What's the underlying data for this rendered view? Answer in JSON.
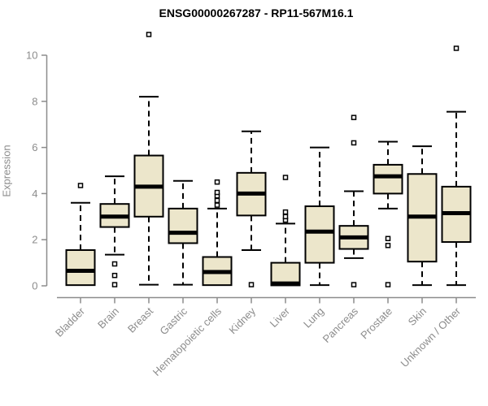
{
  "page": {
    "background": "#ffffff"
  },
  "chart_data": {
    "type": "boxplot",
    "title": "ENSG00000267287 - RP11-567M16.1",
    "ylabel": "Expression",
    "xlabel": "",
    "ylim": [
      0,
      10
    ],
    "yticks": [
      0,
      2,
      4,
      6,
      8,
      10
    ],
    "grid": false,
    "legend": "none",
    "categories": [
      "Bladder",
      "Brain",
      "Breast",
      "Gastric",
      "Hematopoietic cells",
      "Kidney",
      "Liver",
      "Lung",
      "Pancreas",
      "Prostate",
      "Skin",
      "Unknown / Other"
    ],
    "series": [
      {
        "name": "Bladder",
        "whislo": 0.03,
        "q1": 0.03,
        "med": 0.65,
        "q3": 1.55,
        "whishi": 3.6,
        "outliers": [
          4.35
        ]
      },
      {
        "name": "Brain",
        "whislo": 1.35,
        "q1": 2.55,
        "med": 3.0,
        "q3": 3.55,
        "whishi": 4.75,
        "outliers": [
          0.95,
          0.45,
          0.05
        ]
      },
      {
        "name": "Breast",
        "whislo": 0.05,
        "q1": 3.0,
        "med": 4.3,
        "q3": 5.65,
        "whishi": 8.2,
        "outliers": [
          10.9
        ]
      },
      {
        "name": "Gastric",
        "whislo": 0.05,
        "q1": 1.85,
        "med": 2.3,
        "q3": 3.35,
        "whishi": 4.55,
        "outliers": []
      },
      {
        "name": "Hematopoietic cells",
        "whislo": 0.03,
        "q1": 0.03,
        "med": 0.6,
        "q3": 1.25,
        "whishi": 3.35,
        "outliers": [
          3.5,
          3.7,
          3.9,
          4.05,
          4.5
        ]
      },
      {
        "name": "Kidney",
        "whislo": 1.55,
        "q1": 3.05,
        "med": 4.0,
        "q3": 4.9,
        "whishi": 6.7,
        "outliers": [
          0.05
        ]
      },
      {
        "name": "Liver",
        "whislo": 0.02,
        "q1": 0.02,
        "med": 0.1,
        "q3": 1.0,
        "whishi": 2.7,
        "outliers": [
          2.85,
          3.0,
          3.2,
          4.7
        ]
      },
      {
        "name": "Lung",
        "whislo": 0.03,
        "q1": 1.0,
        "med": 2.35,
        "q3": 3.45,
        "whishi": 6.0,
        "outliers": []
      },
      {
        "name": "Pancreas",
        "whislo": 1.2,
        "q1": 1.6,
        "med": 2.1,
        "q3": 2.6,
        "whishi": 4.1,
        "outliers": [
          6.2,
          7.3,
          0.05
        ]
      },
      {
        "name": "Prostate",
        "whislo": 3.35,
        "q1": 4.0,
        "med": 4.75,
        "q3": 5.25,
        "whishi": 6.25,
        "outliers": [
          2.05,
          1.75,
          0.05
        ]
      },
      {
        "name": "Skin",
        "whislo": 0.03,
        "q1": 1.05,
        "med": 3.0,
        "q3": 4.85,
        "whishi": 6.05,
        "outliers": []
      },
      {
        "name": "Unknown / Other",
        "whislo": 0.03,
        "q1": 1.9,
        "med": 3.15,
        "q3": 4.3,
        "whishi": 7.55,
        "outliers": [
          10.3
        ]
      }
    ],
    "colors": {
      "box_fill": "#ece6cb",
      "box_stroke": "#000000",
      "median": "#000000",
      "whisker": "#000000",
      "axis": "#8c8c8c",
      "tick_label": "#8c8c8c",
      "title": "#000000",
      "outlier_fill": "#ffffff",
      "outlier_stroke": "#000000"
    }
  }
}
